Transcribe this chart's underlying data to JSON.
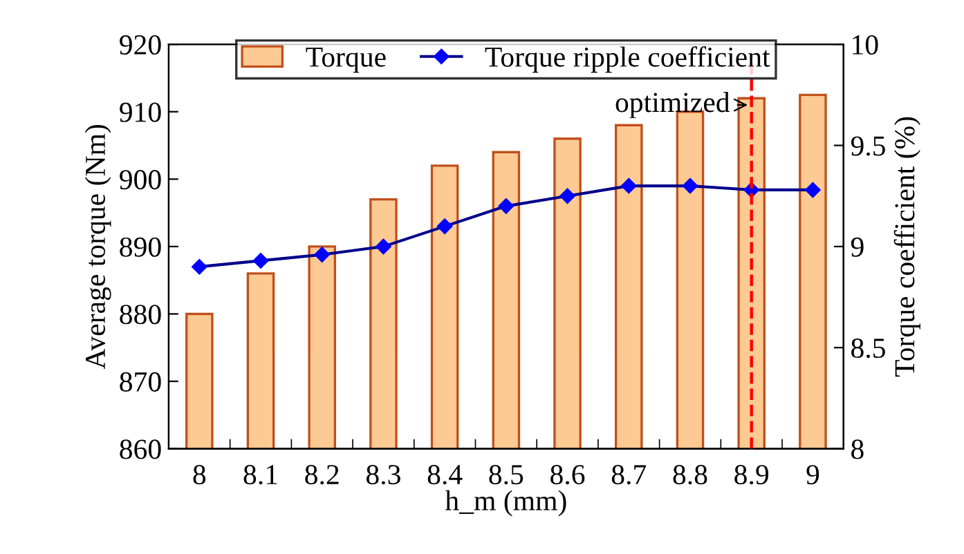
{
  "chart_data": {
    "type": "bar",
    "xlabel": "h_m (mm)",
    "ylabel": "Average torque (Nm)",
    "y2label": "Torque coefficient (%)",
    "categories": [
      "8",
      "8.1",
      "8.2",
      "8.3",
      "8.4",
      "8.5",
      "8.6",
      "8.7",
      "8.8",
      "8.9",
      "9"
    ],
    "series": [
      {
        "name": "Torque",
        "color": "#fdca93",
        "values": [
          880,
          886,
          890,
          897,
          902,
          904,
          906,
          908,
          910,
          912,
          912.5
        ]
      },
      {
        "name": "Torque ripple coefficient",
        "type": "line",
        "axis": "y2",
        "color": "#0000ff",
        "marker": "diamond",
        "values": [
          8.9,
          8.93,
          8.96,
          9.0,
          9.1,
          9.2,
          9.25,
          9.3,
          9.3,
          9.28,
          9.28
        ]
      }
    ],
    "ylim": [
      860,
      920
    ],
    "yticks": [
      860,
      870,
      880,
      890,
      900,
      910,
      920
    ],
    "y2lim": [
      8,
      10
    ],
    "y2ticks": [
      8,
      8.5,
      9,
      9.5,
      10
    ],
    "ref_lines": [
      {
        "axis": "x",
        "value": "8.9",
        "label": "optimized",
        "color": "#ff0000",
        "line_style": "dashed"
      }
    ],
    "legend": "top",
    "grid": false
  }
}
